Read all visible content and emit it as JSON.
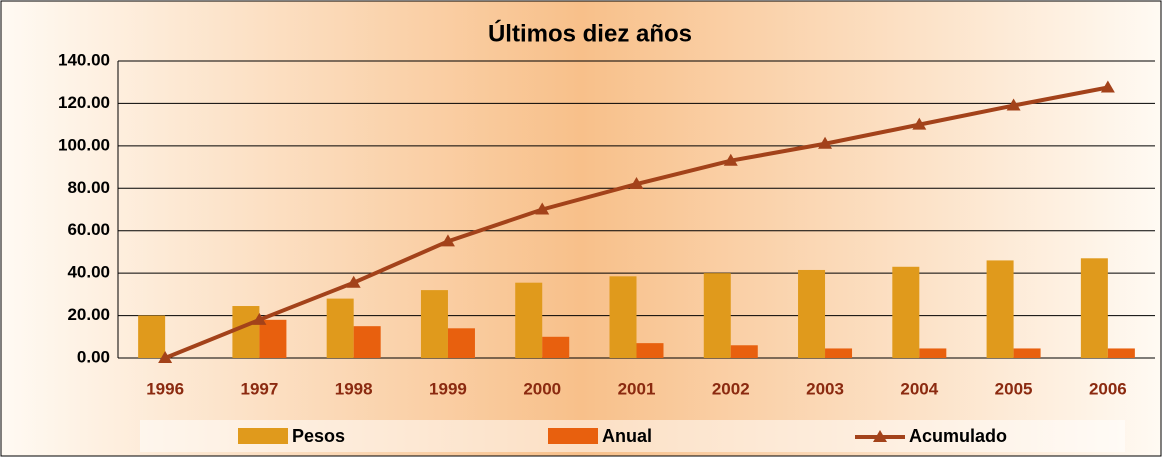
{
  "chart_data": {
    "type": "bar_line",
    "title": "Últimos diez años",
    "categories": [
      "1996",
      "1997",
      "1998",
      "1999",
      "2000",
      "2001",
      "2002",
      "2003",
      "2004",
      "2005",
      "2006"
    ],
    "series": [
      {
        "name": "Pesos",
        "type": "bar",
        "color": "#e09a1c",
        "values": [
          20,
          24.5,
          28,
          32,
          35.5,
          38.5,
          40,
          41.5,
          43,
          46,
          47
        ]
      },
      {
        "name": "Anual",
        "type": "bar",
        "color": "#e8600e",
        "values": [
          0,
          18,
          15,
          14,
          10,
          7,
          6,
          4.5,
          4.5,
          4.5,
          4.5
        ]
      },
      {
        "name": "Acumulado",
        "type": "line",
        "color": "#a3421a",
        "values": [
          0,
          18,
          35.5,
          55,
          70,
          82,
          93,
          101,
          110,
          119,
          127.5
        ]
      }
    ],
    "ylim": [
      0,
      140
    ],
    "yticks": [
      {
        "value": 0,
        "label": "0.00"
      },
      {
        "value": 20,
        "label": "20.00"
      },
      {
        "value": 40,
        "label": "40.00"
      },
      {
        "value": 60,
        "label": "60.00"
      },
      {
        "value": 80,
        "label": "80.00"
      },
      {
        "value": 100,
        "label": "100.00"
      },
      {
        "value": 120,
        "label": "120.00"
      },
      {
        "value": 140,
        "label": "140.00"
      }
    ],
    "grid": true,
    "legend": "bottom"
  }
}
